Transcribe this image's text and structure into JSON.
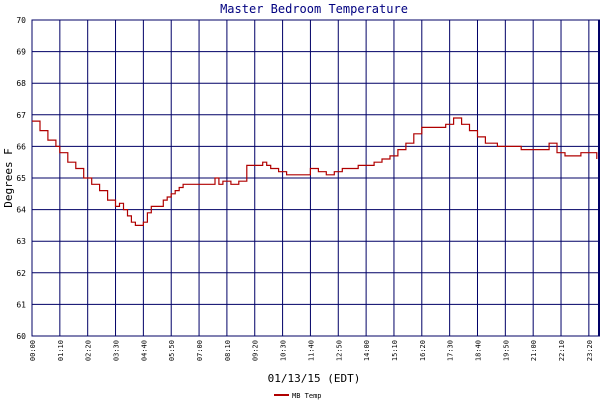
{
  "chart_data": {
    "type": "line",
    "title": "Master Bedroom Temperature",
    "xlabel": "01/13/15 (EDT)",
    "ylabel": "Degrees F",
    "ylim": [
      60,
      70
    ],
    "yticks": [
      "60",
      "61",
      "62",
      "63",
      "64",
      "65",
      "66",
      "67",
      "68",
      "69",
      "70"
    ],
    "xticks": [
      "00:00",
      "01:10",
      "02:20",
      "03:30",
      "04:40",
      "05:50",
      "07:00",
      "08:10",
      "09:20",
      "10:30",
      "11:40",
      "12:50",
      "14:00",
      "15:10",
      "16:20",
      "17:30",
      "18:40",
      "19:50",
      "21:00",
      "22:10",
      "23:20"
    ],
    "xlim_hours": [
      0,
      23.8
    ],
    "grid": true,
    "legend_position": "bottom-left",
    "colors": {
      "series": "#b00000",
      "grid": "#000066",
      "frame": "#000066",
      "title": "#000080"
    },
    "series": [
      {
        "name": "MB Temp",
        "x": [
          "00:00",
          "00:20",
          "00:40",
          "01:00",
          "01:10",
          "01:30",
          "01:50",
          "02:10",
          "02:30",
          "02:50",
          "03:10",
          "03:30",
          "03:40",
          "03:50",
          "04:00",
          "04:10",
          "04:20",
          "04:30",
          "04:40",
          "04:50",
          "05:00",
          "05:10",
          "05:20",
          "05:30",
          "05:40",
          "05:50",
          "06:00",
          "06:10",
          "06:20",
          "06:30",
          "06:40",
          "06:50",
          "07:00",
          "07:20",
          "07:40",
          "07:50",
          "08:00",
          "08:20",
          "08:40",
          "09:00",
          "09:20",
          "09:40",
          "09:50",
          "10:00",
          "10:20",
          "10:40",
          "11:00",
          "11:20",
          "11:40",
          "12:00",
          "12:20",
          "12:40",
          "13:00",
          "13:20",
          "13:40",
          "14:00",
          "14:20",
          "14:40",
          "15:00",
          "15:20",
          "15:40",
          "16:00",
          "16:20",
          "16:40",
          "17:00",
          "17:20",
          "17:40",
          "17:50",
          "18:00",
          "18:20",
          "18:40",
          "19:00",
          "19:30",
          "20:00",
          "20:30",
          "21:00",
          "21:30",
          "21:40",
          "22:00",
          "22:20",
          "22:40",
          "23:00",
          "23:20",
          "23:40"
        ],
        "values": [
          66.8,
          66.5,
          66.2,
          66.0,
          65.8,
          65.5,
          65.3,
          65.0,
          64.8,
          64.6,
          64.3,
          64.1,
          64.2,
          64.0,
          63.8,
          63.6,
          63.5,
          63.5,
          63.6,
          63.9,
          64.1,
          64.1,
          64.1,
          64.3,
          64.4,
          64.5,
          64.6,
          64.7,
          64.8,
          64.8,
          64.8,
          64.8,
          64.8,
          64.8,
          65.0,
          64.8,
          64.9,
          64.8,
          64.9,
          65.4,
          65.4,
          65.5,
          65.4,
          65.3,
          65.2,
          65.1,
          65.1,
          65.1,
          65.3,
          65.2,
          65.1,
          65.2,
          65.3,
          65.3,
          65.4,
          65.4,
          65.5,
          65.6,
          65.7,
          65.9,
          66.1,
          66.4,
          66.6,
          66.6,
          66.6,
          66.7,
          66.9,
          66.9,
          66.7,
          66.5,
          66.3,
          66.1,
          66.0,
          66.0,
          65.9,
          65.9,
          65.9,
          66.1,
          65.8,
          65.7,
          65.7,
          65.8,
          65.8,
          65.6
        ]
      }
    ]
  }
}
